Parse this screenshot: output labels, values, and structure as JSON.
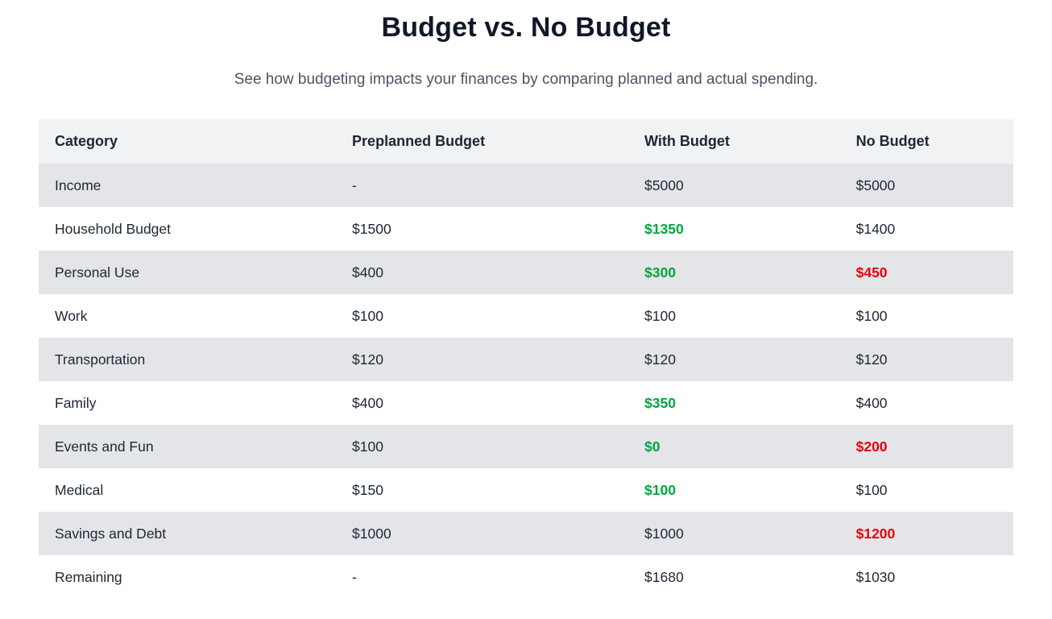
{
  "page": {
    "title": "Budget vs. No Budget",
    "subtitle": "See how budgeting impacts your finances by comparing planned and actual spending."
  },
  "colors": {
    "title": "#101828",
    "subtitle": "#4a5565",
    "body_text": "#1d2733",
    "header_bg": "#f1f2f4",
    "stripe_bg": "#e4e5e9",
    "under_budget_green": "#00a63e",
    "over_budget_red": "#e7000b"
  },
  "table": {
    "columns": [
      "Category",
      "Preplanned Budget",
      "With Budget",
      "No Budget"
    ],
    "rows": [
      {
        "category": "Income",
        "preplanned": "-",
        "with_budget": "$5000",
        "with_status": "neutral",
        "no_budget": "$5000",
        "no_status": "neutral"
      },
      {
        "category": "Household Budget",
        "preplanned": "$1500",
        "with_budget": "$1350",
        "with_status": "good",
        "no_budget": "$1400",
        "no_status": "neutral"
      },
      {
        "category": "Personal Use",
        "preplanned": "$400",
        "with_budget": "$300",
        "with_status": "good",
        "no_budget": "$450",
        "no_status": "bad"
      },
      {
        "category": "Work",
        "preplanned": "$100",
        "with_budget": "$100",
        "with_status": "neutral",
        "no_budget": "$100",
        "no_status": "neutral"
      },
      {
        "category": "Transportation",
        "preplanned": "$120",
        "with_budget": "$120",
        "with_status": "neutral",
        "no_budget": "$120",
        "no_status": "neutral"
      },
      {
        "category": "Family",
        "preplanned": "$400",
        "with_budget": "$350",
        "with_status": "good",
        "no_budget": "$400",
        "no_status": "neutral"
      },
      {
        "category": "Events and Fun",
        "preplanned": "$100",
        "with_budget": "$0",
        "with_status": "good",
        "no_budget": "$200",
        "no_status": "bad"
      },
      {
        "category": "Medical",
        "preplanned": "$150",
        "with_budget": "$100",
        "with_status": "good",
        "no_budget": "$100",
        "no_status": "neutral"
      },
      {
        "category": "Savings and Debt",
        "preplanned": "$1000",
        "with_budget": "$1000",
        "with_status": "neutral",
        "no_budget": "$1200",
        "no_status": "bad"
      },
      {
        "category": "Remaining",
        "preplanned": "-",
        "with_budget": "$1680",
        "with_status": "neutral",
        "no_budget": "$1030",
        "no_status": "neutral"
      }
    ]
  },
  "chart_data": {
    "type": "table",
    "title": "Budget vs. No Budget",
    "subtitle": "See how budgeting impacts your finances by comparing planned and actual spending.",
    "columns": [
      "Category",
      "Preplanned Budget",
      "With Budget",
      "No Budget"
    ],
    "rows": [
      [
        "Income",
        "-",
        "$5000",
        "$5000"
      ],
      [
        "Household Budget",
        "$1500",
        "$1350",
        "$1400"
      ],
      [
        "Personal Use",
        "$400",
        "$300",
        "$450"
      ],
      [
        "Work",
        "$100",
        "$100",
        "$100"
      ],
      [
        "Transportation",
        "$120",
        "$120",
        "$120"
      ],
      [
        "Family",
        "$400",
        "$350",
        "$400"
      ],
      [
        "Events and Fun",
        "$100",
        "$0",
        "$200"
      ],
      [
        "Medical",
        "$150",
        "$100",
        "$100"
      ],
      [
        "Savings and Debt",
        "$1000",
        "$1000",
        "$1200"
      ],
      [
        "Remaining",
        "-",
        "$1680",
        "$1030"
      ]
    ],
    "green_cells": [
      [
        "Household Budget",
        "With Budget"
      ],
      [
        "Personal Use",
        "With Budget"
      ],
      [
        "Family",
        "With Budget"
      ],
      [
        "Events and Fun",
        "With Budget"
      ],
      [
        "Medical",
        "With Budget"
      ]
    ],
    "red_cells": [
      [
        "Personal Use",
        "No Budget"
      ],
      [
        "Events and Fun",
        "No Budget"
      ],
      [
        "Savings and Debt",
        "No Budget"
      ]
    ],
    "layout": {
      "striped_rows": [
        "Income",
        "Personal Use",
        "Transportation",
        "Events and Fun",
        "Savings and Debt"
      ],
      "grid": "off",
      "header_row": true
    }
  }
}
